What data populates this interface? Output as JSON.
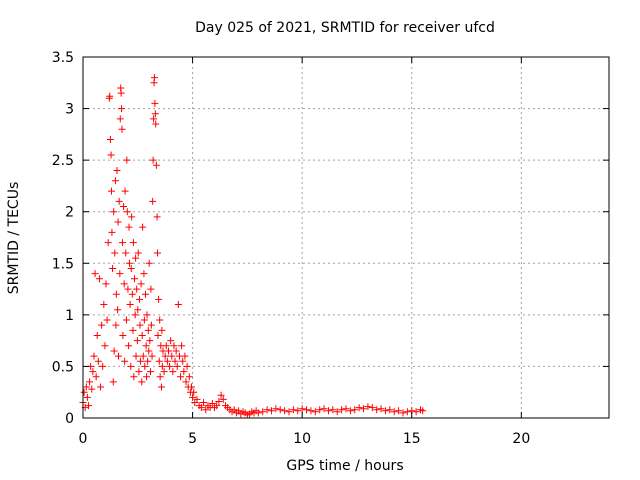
{
  "chart_data": {
    "type": "scatter",
    "title": "Day 025 of 2021, SRMTID for receiver ufcd",
    "xlabel": "GPS time / hours",
    "ylabel": "SRMTID / TECUs",
    "xlim": [
      0,
      24
    ],
    "ylim": [
      0,
      3.5
    ],
    "xticks": [
      0,
      5,
      10,
      15,
      20
    ],
    "xtick_labels": [
      "0",
      "5",
      "10",
      "15",
      "20"
    ],
    "yticks": [
      0,
      0.5,
      1,
      1.5,
      2,
      2.5,
      3,
      3.5
    ],
    "ytick_labels": [
      "0",
      "0.5",
      "1",
      "1.5",
      "2",
      "2.5",
      "3",
      "3.5"
    ],
    "grid": true,
    "marker": "+",
    "color": "#ff0000",
    "series": [
      {
        "name": "SRMTID",
        "points": [
          [
            0.0,
            0.15
          ],
          [
            0.05,
            0.25
          ],
          [
            0.1,
            0.1
          ],
          [
            0.15,
            0.3
          ],
          [
            0.2,
            0.2
          ],
          [
            0.25,
            0.12
          ],
          [
            0.3,
            0.35
          ],
          [
            0.35,
            0.5
          ],
          [
            0.4,
            0.28
          ],
          [
            0.45,
            0.45
          ],
          [
            0.5,
            0.6
          ],
          [
            0.55,
            1.4
          ],
          [
            0.6,
            0.4
          ],
          [
            0.65,
            0.8
          ],
          [
            0.7,
            0.55
          ],
          [
            0.75,
            1.35
          ],
          [
            0.8,
            0.3
          ],
          [
            0.85,
            0.9
          ],
          [
            0.9,
            0.5
          ],
          [
            0.95,
            1.1
          ],
          [
            1.0,
            0.7
          ],
          [
            1.05,
            1.3
          ],
          [
            1.1,
            0.95
          ],
          [
            1.15,
            1.7
          ],
          [
            1.2,
            3.1
          ],
          [
            1.22,
            3.12
          ],
          [
            1.25,
            2.7
          ],
          [
            1.28,
            2.55
          ],
          [
            1.3,
            2.2
          ],
          [
            1.32,
            1.8
          ],
          [
            1.35,
            1.45
          ],
          [
            1.38,
            0.35
          ],
          [
            1.4,
            2.0
          ],
          [
            1.42,
            0.65
          ],
          [
            1.45,
            1.6
          ],
          [
            1.48,
            2.3
          ],
          [
            1.5,
            0.9
          ],
          [
            1.52,
            1.2
          ],
          [
            1.55,
            2.4
          ],
          [
            1.58,
            1.05
          ],
          [
            1.6,
            1.9
          ],
          [
            1.62,
            0.6
          ],
          [
            1.65,
            2.1
          ],
          [
            1.68,
            1.4
          ],
          [
            1.7,
            2.9
          ],
          [
            1.72,
            3.2
          ],
          [
            1.74,
            3.15
          ],
          [
            1.76,
            3.0
          ],
          [
            1.78,
            2.8
          ],
          [
            1.8,
            1.7
          ],
          [
            1.82,
            0.8
          ],
          [
            1.85,
            2.05
          ],
          [
            1.88,
            1.3
          ],
          [
            1.9,
            0.55
          ],
          [
            1.92,
            2.2
          ],
          [
            1.95,
            1.6
          ],
          [
            1.98,
            0.95
          ],
          [
            2.0,
            2.5
          ],
          [
            2.02,
            2.0
          ],
          [
            2.05,
            1.25
          ],
          [
            2.08,
            0.7
          ],
          [
            2.1,
            1.85
          ],
          [
            2.12,
            1.5
          ],
          [
            2.15,
            1.1
          ],
          [
            2.18,
            0.5
          ],
          [
            2.2,
            1.45
          ],
          [
            2.22,
            1.95
          ],
          [
            2.25,
            1.2
          ],
          [
            2.28,
            0.85
          ],
          [
            2.3,
            1.7
          ],
          [
            2.32,
            0.4
          ],
          [
            2.35,
            1.35
          ],
          [
            2.38,
            1.0
          ],
          [
            2.4,
            1.55
          ],
          [
            2.42,
            0.6
          ],
          [
            2.45,
            1.25
          ],
          [
            2.48,
            0.75
          ],
          [
            2.5,
            1.05
          ],
          [
            2.52,
            1.6
          ],
          [
            2.55,
            0.45
          ],
          [
            2.58,
            1.15
          ],
          [
            2.6,
            0.9
          ],
          [
            2.62,
            0.55
          ],
          [
            2.65,
            1.3
          ],
          [
            2.68,
            0.35
          ],
          [
            2.7,
            0.8
          ],
          [
            2.72,
            1.85
          ],
          [
            2.75,
            0.6
          ],
          [
            2.78,
            1.4
          ],
          [
            2.8,
            0.95
          ],
          [
            2.82,
            0.5
          ],
          [
            2.85,
            1.2
          ],
          [
            2.88,
            0.7
          ],
          [
            2.9,
            0.4
          ],
          [
            2.92,
            1.0
          ],
          [
            2.95,
            0.55
          ],
          [
            2.98,
            0.85
          ],
          [
            3.0,
            0.65
          ],
          [
            3.02,
            1.5
          ],
          [
            3.05,
            0.75
          ],
          [
            3.08,
            0.45
          ],
          [
            3.1,
            1.25
          ],
          [
            3.12,
            0.9
          ],
          [
            3.15,
            0.6
          ],
          [
            3.18,
            2.1
          ],
          [
            3.2,
            2.5
          ],
          [
            3.22,
            2.9
          ],
          [
            3.24,
            3.25
          ],
          [
            3.26,
            3.3
          ],
          [
            3.28,
            3.05
          ],
          [
            3.3,
            2.95
          ],
          [
            3.32,
            2.85
          ],
          [
            3.35,
            2.45
          ],
          [
            3.38,
            1.95
          ],
          [
            3.4,
            1.6
          ],
          [
            3.42,
            0.8
          ],
          [
            3.45,
            1.15
          ],
          [
            3.48,
            0.55
          ],
          [
            3.5,
            0.95
          ],
          [
            3.52,
            0.4
          ],
          [
            3.55,
            0.7
          ],
          [
            3.58,
            0.3
          ],
          [
            3.6,
            0.85
          ],
          [
            3.62,
            0.5
          ],
          [
            3.65,
            0.65
          ],
          [
            3.7,
            0.45
          ],
          [
            3.75,
            0.6
          ],
          [
            3.8,
            0.7
          ],
          [
            3.85,
            0.55
          ],
          [
            3.9,
            0.65
          ],
          [
            3.95,
            0.5
          ],
          [
            4.0,
            0.75
          ],
          [
            4.05,
            0.6
          ],
          [
            4.1,
            0.45
          ],
          [
            4.15,
            0.7
          ],
          [
            4.2,
            0.55
          ],
          [
            4.25,
            0.65
          ],
          [
            4.3,
            0.5
          ],
          [
            4.35,
            1.1
          ],
          [
            4.4,
            0.6
          ],
          [
            4.45,
            0.4
          ],
          [
            4.5,
            0.7
          ],
          [
            4.55,
            0.55
          ],
          [
            4.6,
            0.45
          ],
          [
            4.65,
            0.6
          ],
          [
            4.7,
            0.35
          ],
          [
            4.75,
            0.5
          ],
          [
            4.8,
            0.3
          ],
          [
            4.85,
            0.4
          ],
          [
            4.9,
            0.25
          ],
          [
            4.95,
            0.3
          ],
          [
            5.0,
            0.2
          ],
          [
            5.05,
            0.25
          ],
          [
            5.1,
            0.15
          ],
          [
            5.2,
            0.18
          ],
          [
            5.3,
            0.12
          ],
          [
            5.4,
            0.1
          ],
          [
            5.5,
            0.15
          ],
          [
            5.6,
            0.08
          ],
          [
            5.7,
            0.12
          ],
          [
            5.8,
            0.1
          ],
          [
            5.9,
            0.14
          ],
          [
            6.0,
            0.1
          ],
          [
            6.1,
            0.12
          ],
          [
            6.2,
            0.16
          ],
          [
            6.3,
            0.22
          ],
          [
            6.4,
            0.18
          ],
          [
            6.5,
            0.12
          ],
          [
            6.6,
            0.1
          ],
          [
            6.7,
            0.08
          ],
          [
            6.8,
            0.06
          ],
          [
            6.9,
            0.08
          ],
          [
            7.0,
            0.05
          ],
          [
            7.1,
            0.07
          ],
          [
            7.2,
            0.04
          ],
          [
            7.3,
            0.06
          ],
          [
            7.4,
            0.05
          ],
          [
            7.5,
            0.03
          ],
          [
            7.6,
            0.04
          ],
          [
            7.7,
            0.06
          ],
          [
            7.8,
            0.05
          ],
          [
            7.9,
            0.07
          ],
          [
            8.0,
            0.05
          ],
          [
            8.2,
            0.06
          ],
          [
            8.4,
            0.08
          ],
          [
            8.6,
            0.07
          ],
          [
            8.8,
            0.09
          ],
          [
            9.0,
            0.08
          ],
          [
            9.2,
            0.07
          ],
          [
            9.4,
            0.06
          ],
          [
            9.6,
            0.08
          ],
          [
            9.8,
            0.07
          ],
          [
            10.0,
            0.09
          ],
          [
            10.2,
            0.08
          ],
          [
            10.4,
            0.07
          ],
          [
            10.6,
            0.06
          ],
          [
            10.8,
            0.08
          ],
          [
            11.0,
            0.09
          ],
          [
            11.2,
            0.07
          ],
          [
            11.4,
            0.08
          ],
          [
            11.6,
            0.06
          ],
          [
            11.8,
            0.08
          ],
          [
            12.0,
            0.09
          ],
          [
            12.2,
            0.07
          ],
          [
            12.4,
            0.08
          ],
          [
            12.6,
            0.1
          ],
          [
            12.8,
            0.09
          ],
          [
            13.0,
            0.11
          ],
          [
            13.2,
            0.1
          ],
          [
            13.4,
            0.08
          ],
          [
            13.6,
            0.09
          ],
          [
            13.8,
            0.07
          ],
          [
            14.0,
            0.08
          ],
          [
            14.2,
            0.06
          ],
          [
            14.4,
            0.07
          ],
          [
            14.6,
            0.05
          ],
          [
            14.8,
            0.06
          ],
          [
            15.0,
            0.07
          ],
          [
            15.2,
            0.06
          ],
          [
            15.4,
            0.08
          ],
          [
            15.5,
            0.07
          ]
        ]
      }
    ]
  }
}
